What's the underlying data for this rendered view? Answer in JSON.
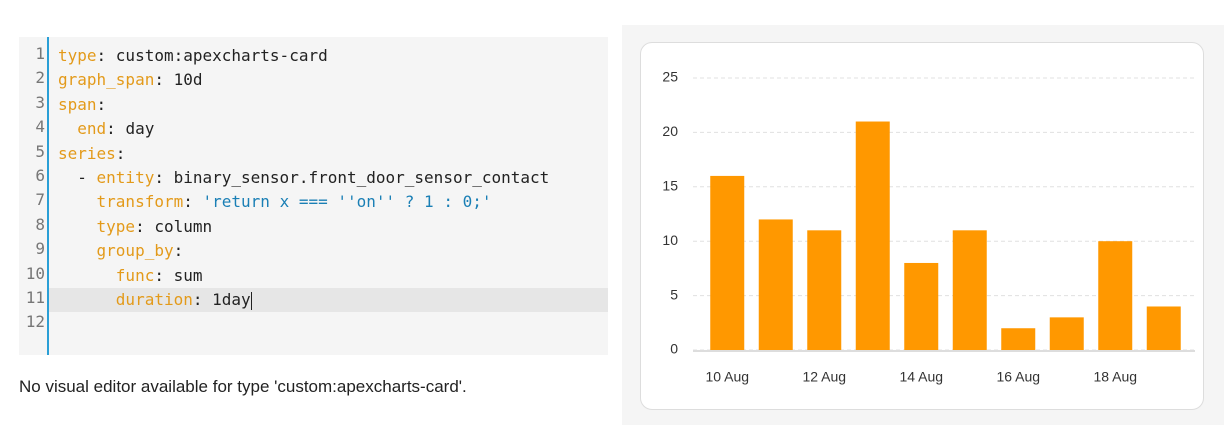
{
  "editor": {
    "line_numbers": [
      1,
      2,
      3,
      4,
      5,
      6,
      7,
      8,
      9,
      10,
      11,
      12
    ],
    "active_line": 10,
    "lines": [
      [
        {
          "text": "type",
          "style": "key"
        },
        {
          "text": ": custom:apexcharts-card",
          "style": "plain"
        }
      ],
      [
        {
          "text": "graph_span",
          "style": "key"
        },
        {
          "text": ": 10d",
          "style": "plain"
        }
      ],
      [
        {
          "text": "span",
          "style": "key"
        },
        {
          "text": ":",
          "style": "plain"
        }
      ],
      [
        {
          "text": "  end",
          "style": "key"
        },
        {
          "text": ": day",
          "style": "plain"
        }
      ],
      [
        {
          "text": "series",
          "style": "key"
        },
        {
          "text": ":",
          "style": "plain"
        }
      ],
      [
        {
          "text": "  - ",
          "style": "plain"
        },
        {
          "text": "entity",
          "style": "key"
        },
        {
          "text": ": binary_sensor.front_door_sensor_contact",
          "style": "plain"
        }
      ],
      [
        {
          "text": "    transform",
          "style": "key"
        },
        {
          "text": ": ",
          "style": "plain"
        },
        {
          "text": "'return x === ''on'' ? 1 : 0;'",
          "style": "string"
        }
      ],
      [
        {
          "text": "    type",
          "style": "key"
        },
        {
          "text": ": column",
          "style": "plain"
        }
      ],
      [
        {
          "text": "    group_by",
          "style": "key"
        },
        {
          "text": ":",
          "style": "plain"
        }
      ],
      [
        {
          "text": "      func",
          "style": "key"
        },
        {
          "text": ": sum",
          "style": "plain"
        }
      ],
      [
        {
          "text": "      duration",
          "style": "key"
        },
        {
          "text": ": 1day",
          "style": "plain"
        }
      ],
      []
    ]
  },
  "message": "No visual editor available for type 'custom:apexcharts-card'.",
  "chart_data": {
    "type": "bar",
    "color": "#ff9800",
    "categories": [
      "10 Aug",
      null,
      "12 Aug",
      null,
      "14 Aug",
      null,
      "16 Aug",
      null,
      "18 Aug",
      null
    ],
    "values": [
      16,
      12,
      11,
      21,
      8,
      11,
      2,
      3,
      10,
      4
    ],
    "ylim": [
      0,
      25
    ],
    "yticks": [
      0,
      5,
      10,
      15,
      20,
      25
    ],
    "grid": true
  }
}
